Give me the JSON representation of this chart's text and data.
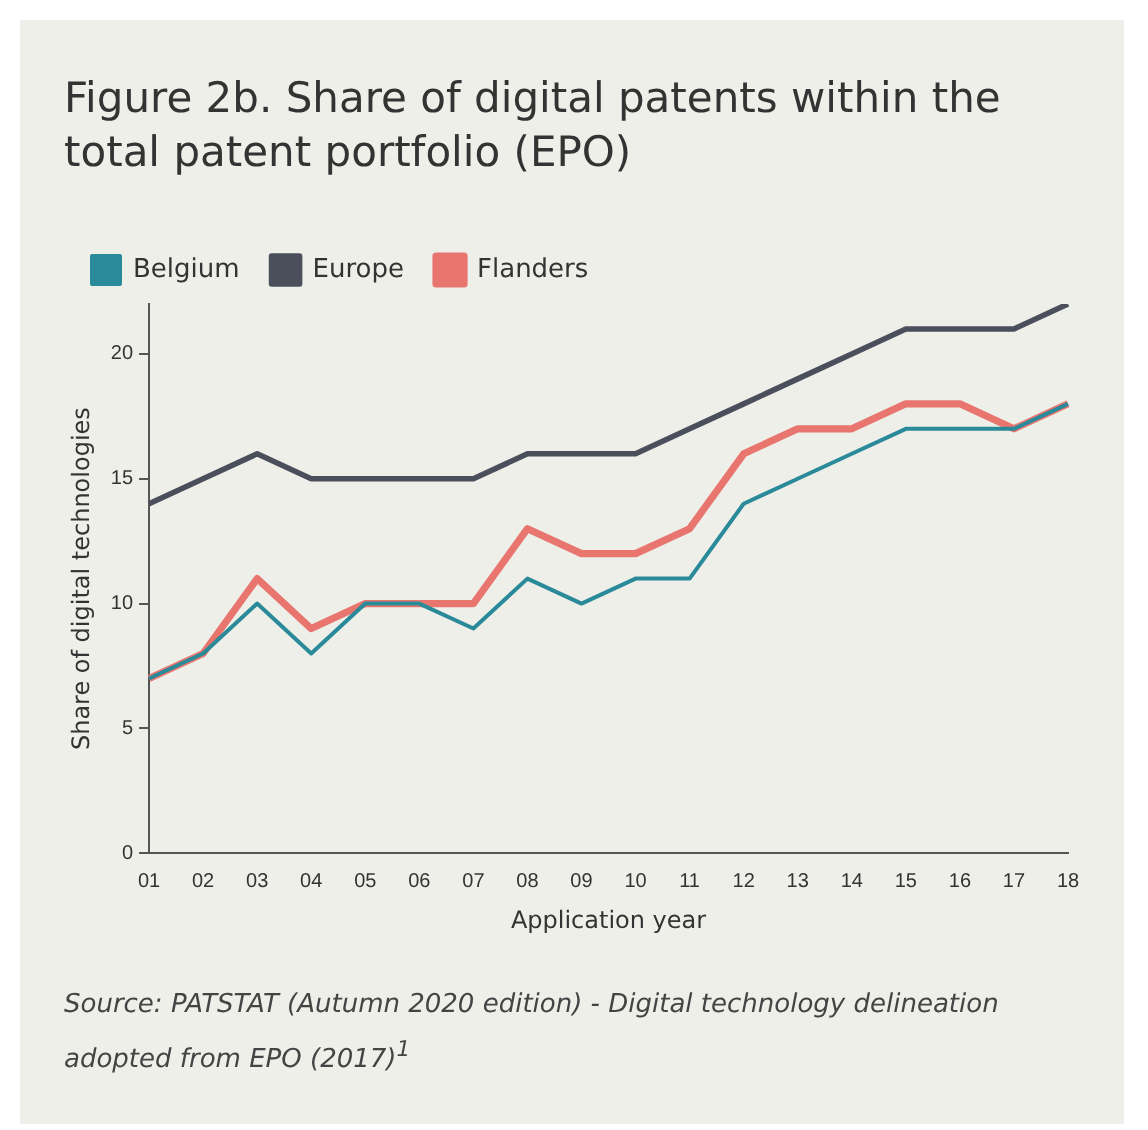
{
  "chart_data": {
    "type": "line",
    "title": "Figure 2b. Share of digital patents within the total patent portfolio (EPO)",
    "xlabel": "Application year",
    "ylabel": "Share of digital technologies",
    "categories": [
      "01",
      "02",
      "03",
      "04",
      "05",
      "06",
      "07",
      "08",
      "09",
      "10",
      "11",
      "12",
      "13",
      "14",
      "15",
      "16",
      "17",
      "18"
    ],
    "series": [
      {
        "name": "Belgium",
        "color": "#2a8a99",
        "values": [
          7,
          8,
          10,
          8,
          10,
          10,
          9,
          11,
          10,
          11,
          11,
          14,
          15,
          16,
          17,
          17,
          17,
          18
        ]
      },
      {
        "name": "Europe",
        "color": "#4b4f5c",
        "values": [
          14,
          15,
          16,
          15,
          15,
          15,
          15,
          16,
          16,
          16,
          17,
          18,
          19,
          20,
          21,
          21,
          21,
          22
        ]
      },
      {
        "name": "Flanders",
        "color": "#e8766f",
        "values": [
          7,
          8,
          11,
          9,
          10,
          10,
          10,
          13,
          12,
          12,
          13,
          16,
          17,
          17,
          18,
          18,
          17,
          18
        ]
      }
    ],
    "ylim": [
      0,
      22
    ],
    "yticks": [
      0,
      5,
      10,
      15,
      20
    ],
    "grid": false,
    "legend": "top left",
    "marker": "none",
    "line_style": "solid",
    "annotations": [
      "Source: PATSTAT (Autumn 2020 edition) - Digital technology delineation adopted from EPO (2017)$^{1}$"
    ]
  }
}
